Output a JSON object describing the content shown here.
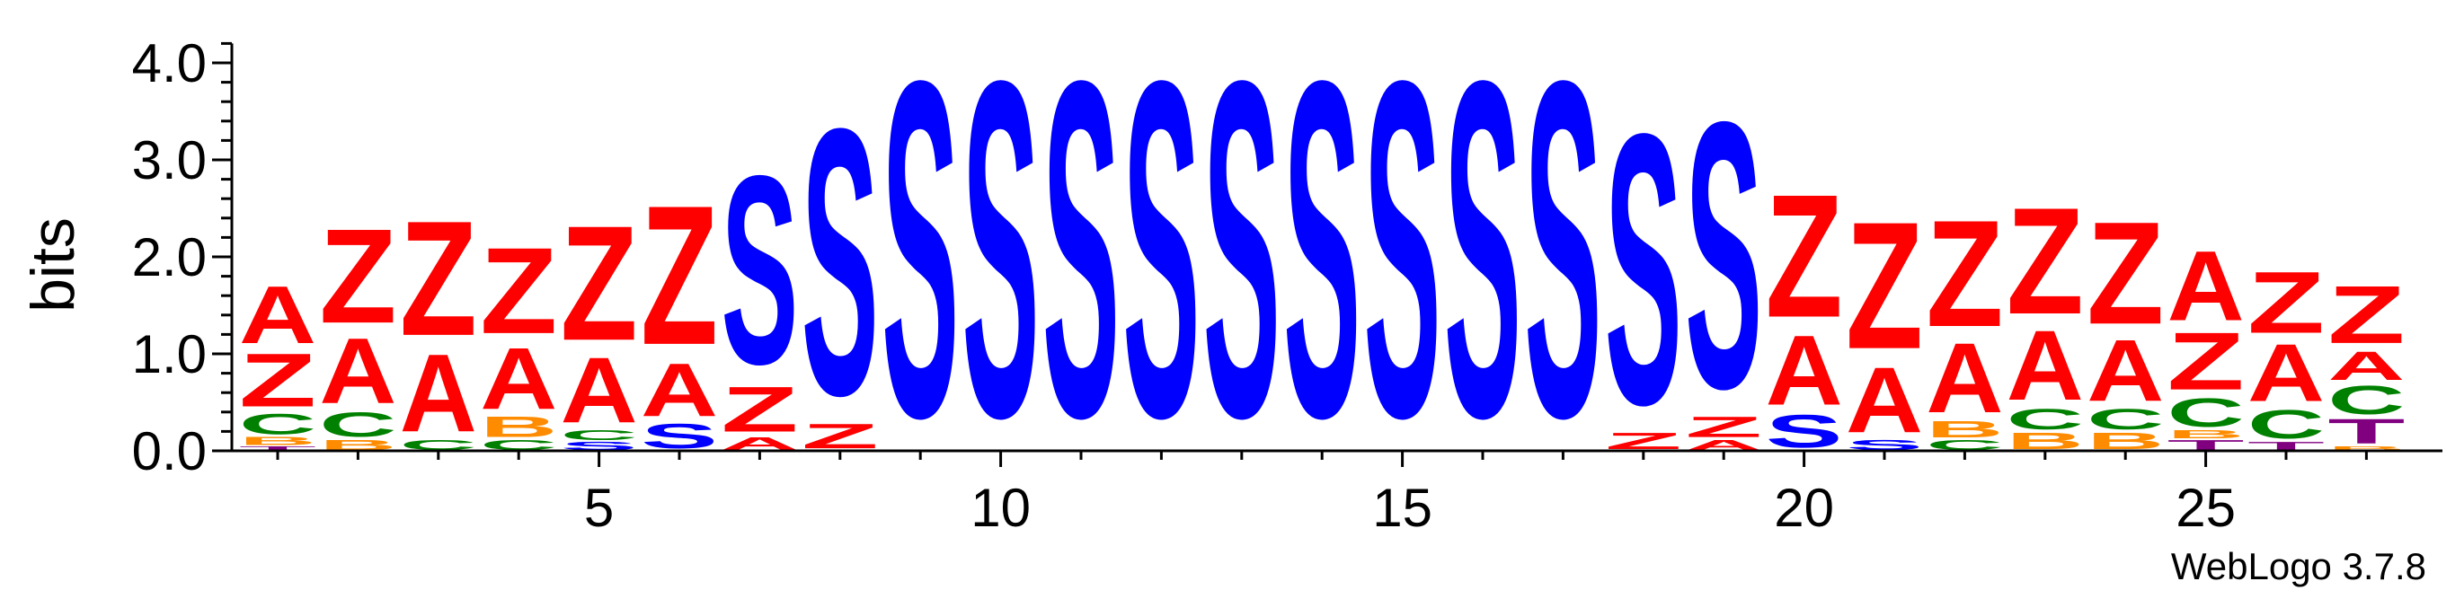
{
  "chart_data": {
    "type": "sequence-logo",
    "ylabel": "bits",
    "ylim": [
      0,
      4.2
    ],
    "yticks": [
      "0.0",
      "1.0",
      "2.0",
      "3.0",
      "4.0"
    ],
    "xticks": [
      5,
      10,
      15,
      20,
      25
    ],
    "footer": "WebLogo 3.7.8",
    "colors": {
      "A": "#ff0000",
      "Z": "#ff0000",
      "S": "#0000ff",
      "C": "#008000",
      "B": "#ff8c00",
      "T": "#800080"
    },
    "positions": [
      {
        "pos": 1,
        "stack": [
          [
            "T",
            0.05
          ],
          [
            "B",
            0.1
          ],
          [
            "C",
            0.25
          ],
          [
            "Z",
            0.65
          ],
          [
            "A",
            0.7
          ]
        ]
      },
      {
        "pos": 2,
        "stack": [
          [
            "B",
            0.12
          ],
          [
            "C",
            0.3
          ],
          [
            "A",
            0.8
          ],
          [
            "Z",
            1.15
          ]
        ]
      },
      {
        "pos": 3,
        "stack": [
          [
            "C",
            0.12
          ],
          [
            "A",
            0.95
          ],
          [
            "Z",
            1.4
          ]
        ]
      },
      {
        "pos": 4,
        "stack": [
          [
            "C",
            0.12
          ],
          [
            "B",
            0.25
          ],
          [
            "A",
            0.75
          ],
          [
            "Z",
            1.05
          ]
        ]
      },
      {
        "pos": 5,
        "stack": [
          [
            "S",
            0.1
          ],
          [
            "C",
            0.12
          ],
          [
            "A",
            0.8
          ],
          [
            "Z",
            1.4
          ]
        ]
      },
      {
        "pos": 6,
        "stack": [
          [
            "S",
            0.3
          ],
          [
            "A",
            0.65
          ],
          [
            "Z",
            1.7
          ]
        ]
      },
      {
        "pos": 7,
        "stack": [
          [
            "A",
            0.15
          ],
          [
            "Z",
            0.55
          ],
          [
            "S",
            2.3
          ]
        ]
      },
      {
        "pos": 8,
        "stack": [
          [
            "Z",
            0.3
          ],
          [
            "S",
            3.25
          ]
        ]
      },
      {
        "pos": 9,
        "stack": [
          [
            "S",
            4.1
          ]
        ]
      },
      {
        "pos": 10,
        "stack": [
          [
            "S",
            4.1
          ]
        ]
      },
      {
        "pos": 11,
        "stack": [
          [
            "S",
            4.1
          ]
        ]
      },
      {
        "pos": 12,
        "stack": [
          [
            "S",
            4.1
          ]
        ]
      },
      {
        "pos": 13,
        "stack": [
          [
            "S",
            4.1
          ]
        ]
      },
      {
        "pos": 14,
        "stack": [
          [
            "S",
            4.1
          ]
        ]
      },
      {
        "pos": 15,
        "stack": [
          [
            "S",
            4.1
          ]
        ]
      },
      {
        "pos": 16,
        "stack": [
          [
            "S",
            4.1
          ]
        ]
      },
      {
        "pos": 17,
        "stack": [
          [
            "S",
            4.1
          ]
        ]
      },
      {
        "pos": 18,
        "stack": [
          [
            "Z",
            0.2
          ],
          [
            "S",
            3.3
          ]
        ]
      },
      {
        "pos": 19,
        "stack": [
          [
            "A",
            0.12
          ],
          [
            "Z",
            0.25
          ],
          [
            "S",
            3.25
          ]
        ]
      },
      {
        "pos": 20,
        "stack": [
          [
            "S",
            0.4
          ],
          [
            "A",
            0.85
          ],
          [
            "Z",
            1.5
          ]
        ]
      },
      {
        "pos": 21,
        "stack": [
          [
            "S",
            0.12
          ],
          [
            "A",
            0.8
          ],
          [
            "Z",
            1.55
          ]
        ]
      },
      {
        "pos": 22,
        "stack": [
          [
            "C",
            0.12
          ],
          [
            "B",
            0.2
          ],
          [
            "A",
            0.85
          ],
          [
            "Z",
            1.3
          ]
        ]
      },
      {
        "pos": 23,
        "stack": [
          [
            "B",
            0.2
          ],
          [
            "C",
            0.25
          ],
          [
            "A",
            0.85
          ],
          [
            "Z",
            1.3
          ]
        ]
      },
      {
        "pos": 24,
        "stack": [
          [
            "B",
            0.2
          ],
          [
            "C",
            0.25
          ],
          [
            "A",
            0.75
          ],
          [
            "Z",
            1.25
          ]
        ]
      },
      {
        "pos": 25,
        "stack": [
          [
            "T",
            0.12
          ],
          [
            "B",
            0.1
          ],
          [
            "C",
            0.35
          ],
          [
            "Z",
            0.7
          ],
          [
            "A",
            0.85
          ]
        ]
      },
      {
        "pos": 26,
        "stack": [
          [
            "T",
            0.1
          ],
          [
            "C",
            0.35
          ],
          [
            "A",
            0.7
          ],
          [
            "Z",
            0.75
          ]
        ]
      },
      {
        "pos": 27,
        "stack": [
          [
            "B",
            0.05
          ],
          [
            "T",
            0.3
          ],
          [
            "C",
            0.35
          ],
          [
            "A",
            0.35
          ],
          [
            "Z",
            0.7
          ]
        ]
      }
    ]
  }
}
